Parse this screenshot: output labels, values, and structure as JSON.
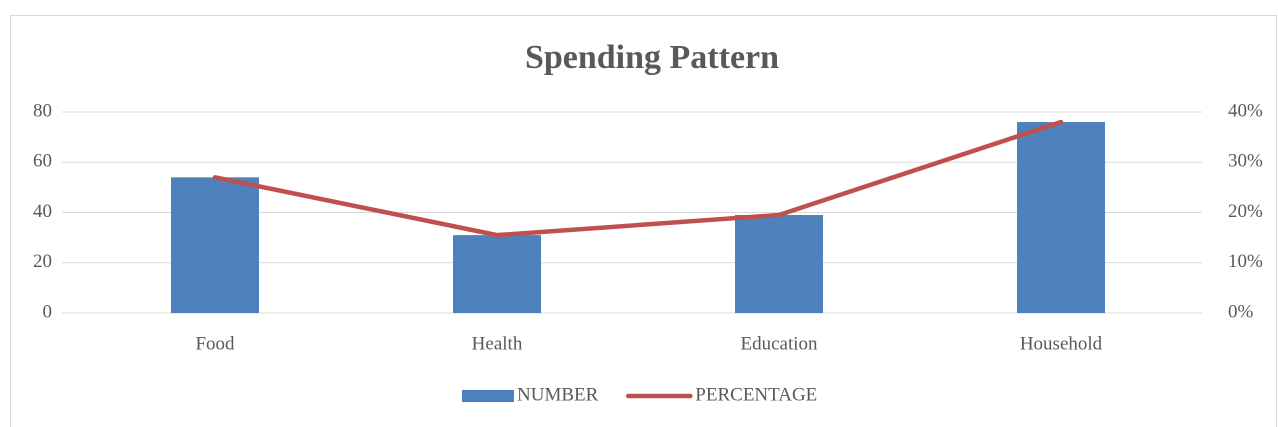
{
  "chart_data": {
    "type": "bar",
    "title": "Spending Pattern",
    "categories": [
      "Food",
      "Health",
      "Education",
      "Household"
    ],
    "series": [
      {
        "name": "NUMBER",
        "color": "#4f81bd",
        "type": "bar",
        "values": [
          54,
          31,
          39,
          76
        ]
      },
      {
        "name": "PERCENTAGE",
        "color": "#c0504d",
        "type": "line",
        "axis": "y2",
        "values": [
          27,
          15.5,
          19.5,
          38
        ]
      }
    ],
    "ylim": [
      0,
      80
    ],
    "yticks": [
      0,
      20,
      40,
      60,
      80
    ],
    "y2lim": [
      0,
      40
    ],
    "y2ticks": [
      {
        "value": 0,
        "label": "0%"
      },
      {
        "value": 10,
        "label": "10%"
      },
      {
        "value": 20,
        "label": "20%"
      },
      {
        "value": 30,
        "label": "30%"
      },
      {
        "value": 40,
        "label": "40%"
      }
    ],
    "grid": true,
    "legend": "bottom"
  }
}
